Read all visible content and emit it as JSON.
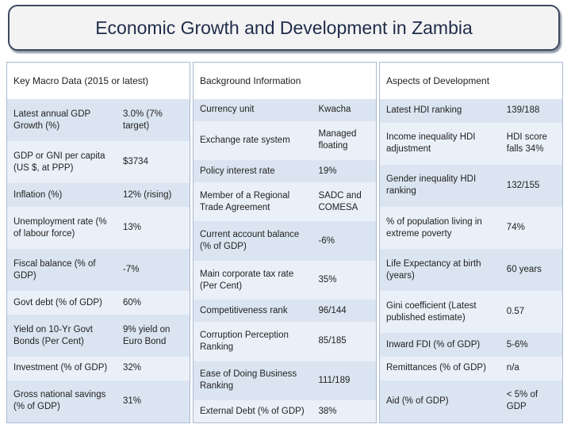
{
  "title": "Economic Growth and Development in Zambia",
  "panels": [
    {
      "header": "Key Macro Data (2015 or latest)",
      "rows": [
        [
          "Latest annual GDP Growth (%)",
          "3.0% (7% target)"
        ],
        [
          "GDP or GNI per capita (US $, at PPP)",
          "$3734"
        ],
        [
          "Inflation (%)",
          "12% (rising)"
        ],
        [
          "Unemployment rate (% of labour force)",
          "13%"
        ],
        [
          "Fiscal balance (% of GDP)",
          "-7%"
        ],
        [
          "Govt debt (% of GDP)",
          "60%"
        ],
        [
          "Yield on 10-Yr Govt Bonds (Per Cent)",
          "9% yield on Euro Bond"
        ],
        [
          "Investment (% of GDP)",
          "32%"
        ],
        [
          "Gross national savings (% of GDP)",
          "31%"
        ]
      ]
    },
    {
      "header": "Background Information",
      "rows": [
        [
          "Currency unit",
          "Kwacha"
        ],
        [
          "Exchange rate system",
          "Managed floating"
        ],
        [
          "Policy interest rate",
          "19%"
        ],
        [
          "Member of a Regional Trade Agreement",
          "SADC and COMESA"
        ],
        [
          "Current account balance (% of GDP)",
          "-6%"
        ],
        [
          "Main corporate tax rate (Per Cent)",
          "35%"
        ],
        [
          "Competitiveness rank",
          "96/144"
        ],
        [
          "Corruption Perception Ranking",
          "85/185"
        ],
        [
          "Ease of Doing Business Ranking",
          "111/189"
        ],
        [
          "External Debt (% of GDP)",
          "38%"
        ]
      ]
    },
    {
      "header": "Aspects of Development",
      "rows": [
        [
          "Latest HDI ranking",
          "139/188"
        ],
        [
          "Income inequality HDI adjustment",
          "HDI score falls 34%"
        ],
        [
          "Gender inequality HDI ranking",
          "132/155"
        ],
        [
          "% of population living in extreme poverty",
          "74%"
        ],
        [
          "Life Expectancy at birth (years)",
          "60 years"
        ],
        [
          "Gini coefficient (Latest published estimate)",
          "0.57"
        ],
        [
          "Inward FDI (% of GDP)",
          "5-6%"
        ],
        [
          "Remittances (% of GDP)",
          "n/a"
        ],
        [
          "Aid (% of GDP)",
          "< 5% of GDP"
        ]
      ]
    }
  ]
}
